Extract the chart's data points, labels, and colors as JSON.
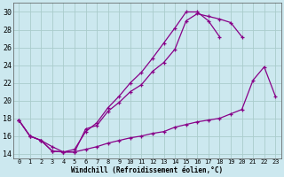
{
  "xlabel": "Windchill (Refroidissement éolien,°C)",
  "bg_color": "#cce8ef",
  "grid_color": "#aacccc",
  "line_color": "#880088",
  "xlim": [
    -0.5,
    23.5
  ],
  "ylim": [
    13.5,
    31.0
  ],
  "xticks": [
    0,
    1,
    2,
    3,
    4,
    5,
    6,
    7,
    8,
    9,
    10,
    11,
    12,
    13,
    14,
    15,
    16,
    17,
    18,
    19,
    20,
    21,
    22,
    23
  ],
  "yticks": [
    14,
    16,
    18,
    20,
    22,
    24,
    26,
    28,
    30
  ],
  "line1_x": [
    0,
    1,
    2,
    3,
    4,
    5,
    6,
    7,
    8,
    9,
    10,
    11,
    12,
    13,
    14,
    15,
    16,
    17,
    18,
    19,
    20
  ],
  "line1_y": [
    17.8,
    16.0,
    15.5,
    14.8,
    14.2,
    14.2,
    16.8,
    17.2,
    18.8,
    19.8,
    21.0,
    21.8,
    23.3,
    24.3,
    25.8,
    29.0,
    29.8,
    29.5,
    29.2,
    28.8,
    27.2
  ],
  "line2_x": [
    0,
    1,
    2,
    3,
    4,
    5,
    6,
    7,
    8,
    9,
    10,
    11,
    12,
    13,
    14,
    15,
    16,
    17,
    18
  ],
  "line2_y": [
    17.8,
    16.0,
    15.5,
    14.3,
    14.2,
    14.5,
    16.5,
    17.5,
    19.2,
    20.5,
    22.0,
    23.2,
    24.8,
    26.5,
    28.2,
    30.0,
    30.0,
    29.0,
    27.2
  ],
  "line3_x": [
    0,
    1,
    2,
    3,
    4,
    5,
    6,
    7,
    8,
    9,
    10,
    11,
    12,
    13,
    14,
    15,
    16,
    17,
    18,
    19,
    20,
    21,
    22,
    23
  ],
  "line3_y": [
    17.8,
    16.0,
    15.5,
    14.3,
    14.2,
    14.2,
    14.5,
    14.8,
    15.2,
    15.5,
    15.8,
    16.0,
    16.3,
    16.5,
    17.0,
    17.3,
    17.6,
    17.8,
    18.0,
    18.5,
    19.0,
    22.3,
    23.8,
    20.5
  ]
}
